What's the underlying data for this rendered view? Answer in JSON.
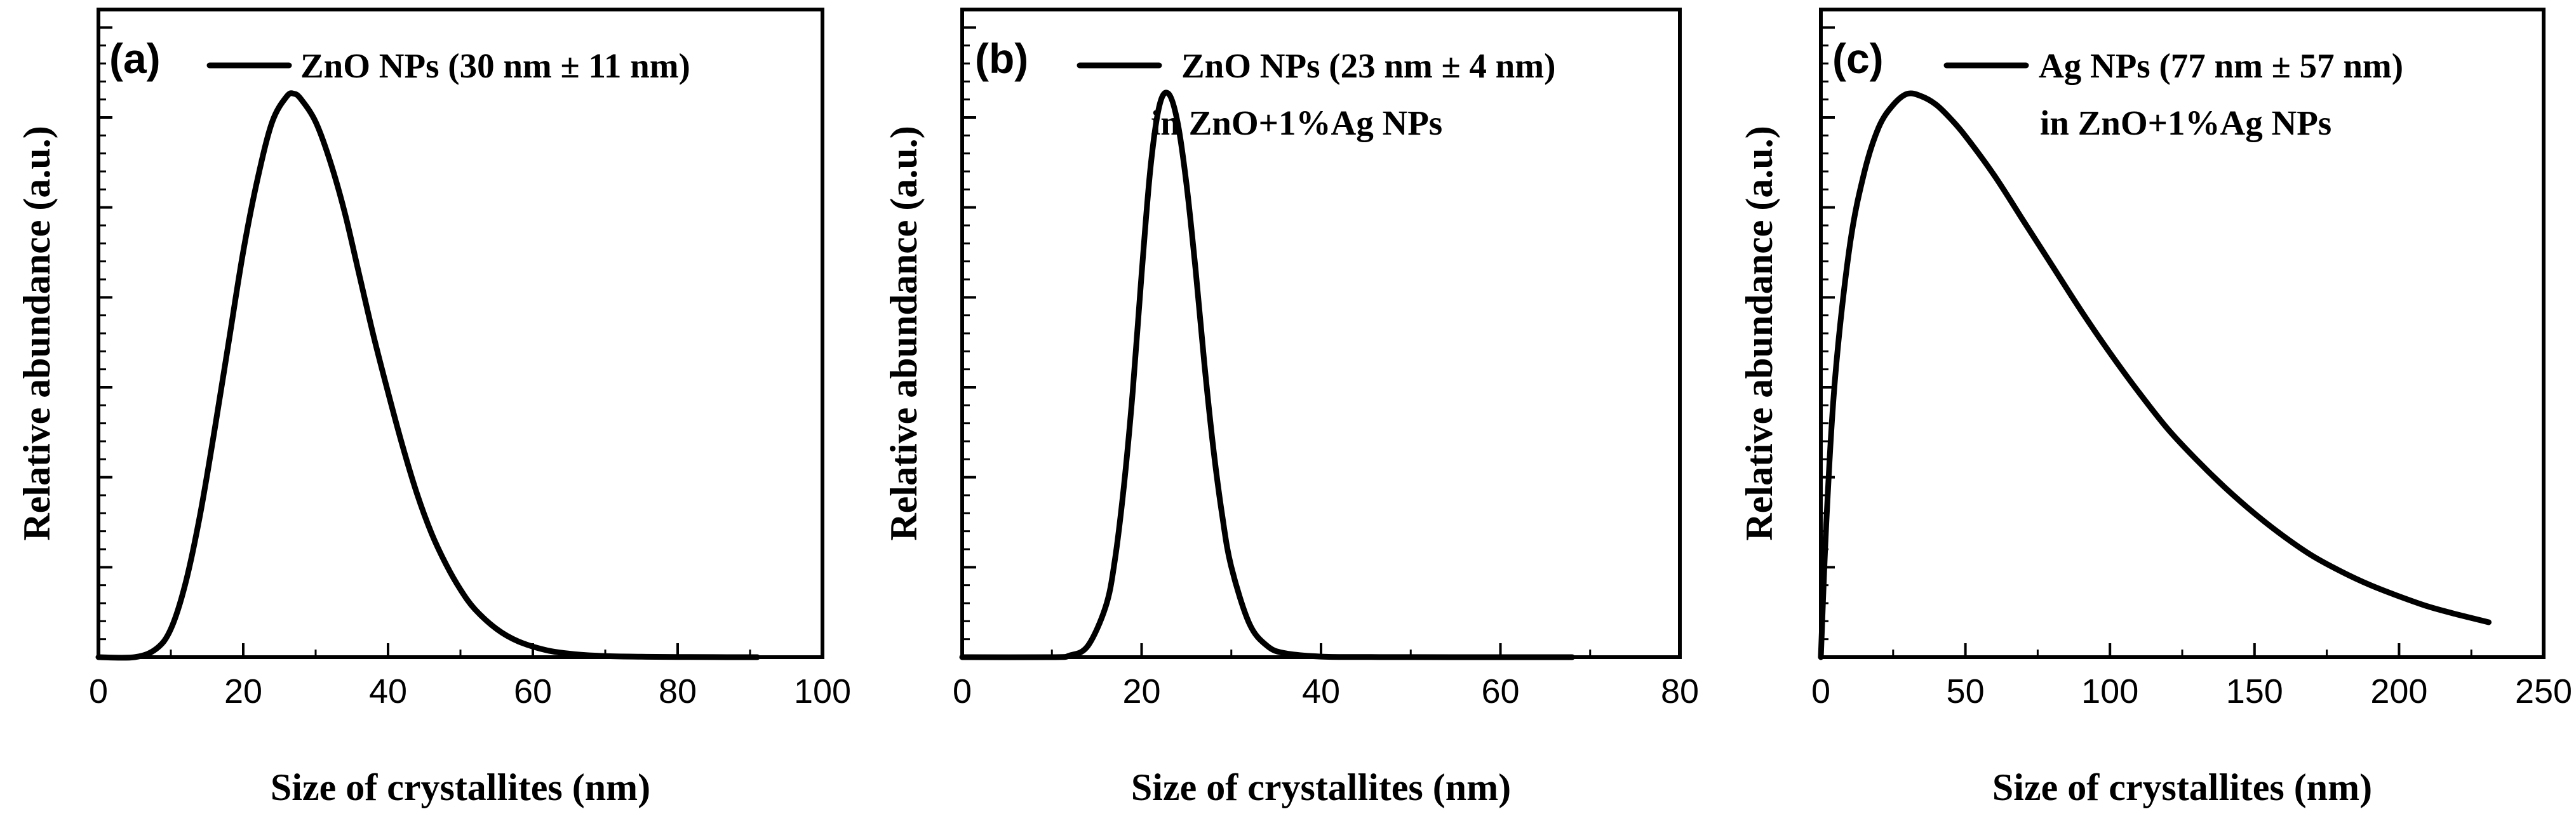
{
  "chart_data": [
    {
      "type": "line",
      "panel_label": "(a)",
      "legend": [
        "ZnO NPs (30 nm ± 11 nm)"
      ],
      "legend_position": "top-center",
      "xlabel": "Size of crystallites (nm)",
      "ylabel": "Relative abundance (a.u.)",
      "xlim": [
        0,
        100
      ],
      "ylim": [
        0,
        1.0
      ],
      "xticks": [
        0,
        20,
        40,
        60,
        80,
        100
      ],
      "xtick_labels": [
        "0",
        "20",
        "40",
        "60",
        "80",
        "100"
      ],
      "yticks_labeled": false,
      "series": [
        {
          "name": "ZnO NPs (30 nm ± 11 nm)",
          "x": [
            0,
            5,
            8,
            10,
            12,
            14,
            16,
            18,
            20,
            22,
            24,
            26,
            27,
            28,
            30,
            32,
            34,
            36,
            38,
            40,
            42,
            44,
            46,
            48,
            50,
            52,
            55,
            58,
            62,
            66,
            70,
            75,
            80,
            85,
            91
          ],
          "y": [
            0,
            0.0,
            0.015,
            0.05,
            0.13,
            0.25,
            0.4,
            0.56,
            0.72,
            0.85,
            0.95,
            0.995,
            1.0,
            0.99,
            0.95,
            0.88,
            0.79,
            0.68,
            0.57,
            0.47,
            0.375,
            0.29,
            0.22,
            0.165,
            0.12,
            0.085,
            0.05,
            0.028,
            0.012,
            0.005,
            0.002,
            0.0008,
            0.0003,
            0.0001,
            0
          ]
        }
      ]
    },
    {
      "type": "line",
      "panel_label": "(b)",
      "legend": [
        "ZnO NPs (23 nm ± 4 nm)",
        "in ZnO+1%Ag NPs"
      ],
      "legend_position": "top-center",
      "xlabel": "Size of crystallites (nm)",
      "ylabel": "Relative abundance (a.u.)",
      "xlim": [
        0,
        80
      ],
      "ylim": [
        0,
        1.0
      ],
      "xticks": [
        0,
        20,
        40,
        60,
        80
      ],
      "xtick_labels": [
        "0",
        "20",
        "40",
        "60",
        "80"
      ],
      "yticks_labeled": false,
      "series": [
        {
          "name": "ZnO NPs (23 nm ± 4 nm) in ZnO+1%Ag NPs",
          "x": [
            0,
            10,
            12,
            14,
            16,
            17,
            18,
            19,
            20,
            21,
            22,
            23,
            24,
            25,
            26,
            27,
            28,
            29,
            30,
            32,
            34,
            36,
            40,
            45,
            50,
            60,
            68
          ],
          "y": [
            0,
            0,
            0.003,
            0.02,
            0.09,
            0.17,
            0.3,
            0.47,
            0.68,
            0.87,
            0.98,
            1.0,
            0.95,
            0.84,
            0.69,
            0.52,
            0.37,
            0.25,
            0.16,
            0.06,
            0.02,
            0.007,
            0.001,
            0.0003,
            0.0001,
            0,
            0
          ]
        }
      ]
    },
    {
      "type": "line",
      "panel_label": "(c)",
      "legend": [
        "Ag NPs (77 nm ± 57 nm)",
        "in ZnO+1%Ag NPs"
      ],
      "legend_position": "top-center",
      "xlabel": "Size of crystallites (nm)",
      "ylabel": "Relative abundance (a.u.)",
      "xlim": [
        0,
        250
      ],
      "ylim": [
        0,
        1.0
      ],
      "xticks": [
        0,
        50,
        100,
        150,
        200,
        250
      ],
      "xtick_labels": [
        "0",
        "50",
        "100",
        "150",
        "200",
        "250"
      ],
      "yticks_labeled": false,
      "series": [
        {
          "name": "Ag NPs (77 nm ± 57 nm) in ZnO+1%Ag NPs",
          "x": [
            0,
            2,
            5,
            10,
            15,
            20,
            25,
            30,
            35,
            40,
            45,
            50,
            60,
            70,
            80,
            90,
            100,
            110,
            120,
            130,
            140,
            150,
            160,
            170,
            180,
            190,
            200,
            210,
            220,
            231
          ],
          "y": [
            0,
            0.25,
            0.5,
            0.73,
            0.86,
            0.94,
            0.98,
            1.0,
            0.995,
            0.98,
            0.955,
            0.925,
            0.855,
            0.775,
            0.695,
            0.615,
            0.54,
            0.47,
            0.405,
            0.35,
            0.3,
            0.255,
            0.215,
            0.18,
            0.152,
            0.128,
            0.108,
            0.09,
            0.076,
            0.062
          ]
        }
      ]
    }
  ]
}
